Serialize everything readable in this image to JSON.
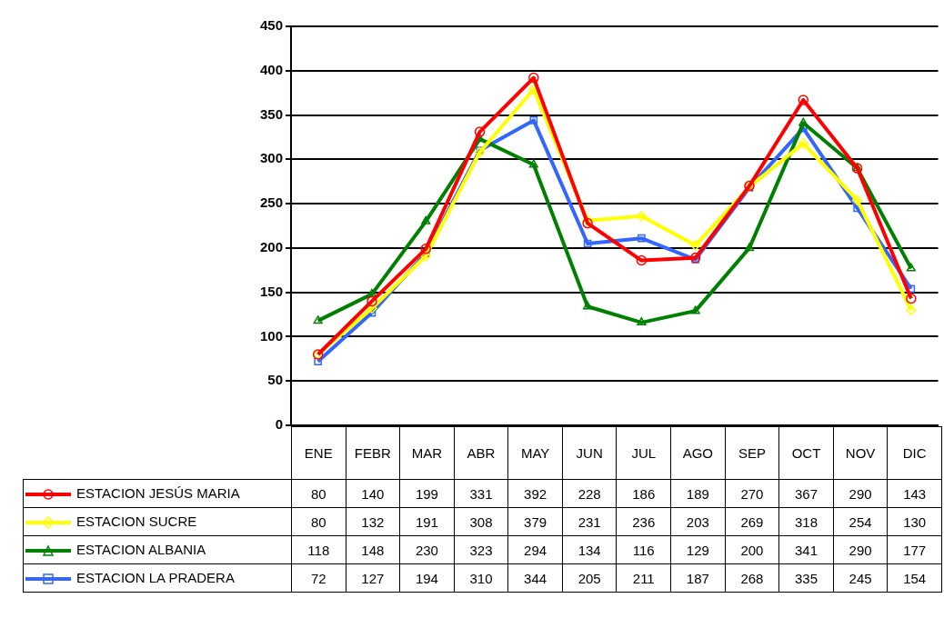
{
  "chart_data": {
    "type": "line",
    "categories": [
      "ENE",
      "FEBR",
      "MAR",
      "ABR",
      "MAY",
      "JUN",
      "JUL",
      "AGO",
      "SEP",
      "OCT",
      "NOV",
      "DIC"
    ],
    "series": [
      {
        "name": "ESTACION JESÚS MARIA",
        "color": "#ff0000",
        "marker": "circle",
        "values": [
          80,
          140,
          199,
          331,
          392,
          228,
          186,
          189,
          270,
          367,
          290,
          143
        ]
      },
      {
        "name": "ESTACION SUCRE",
        "color": "#ffff00",
        "marker": "diamond",
        "values": [
          80,
          132,
          191,
          308,
          379,
          231,
          236,
          203,
          269,
          318,
          254,
          130
        ]
      },
      {
        "name": "ESTACION  ALBANIA",
        "color": "#008000",
        "marker": "triangle",
        "values": [
          118,
          148,
          230,
          323,
          294,
          134,
          116,
          129,
          200,
          341,
          290,
          177
        ]
      },
      {
        "name": "ESTACION  LA PRADERA",
        "color": "#3366ff",
        "marker": "square",
        "values": [
          72,
          127,
          194,
          310,
          344,
          205,
          211,
          187,
          268,
          335,
          245,
          154
        ]
      }
    ],
    "ylim": [
      0,
      450
    ],
    "yticks": [
      0,
      50,
      100,
      150,
      200,
      250,
      300,
      350,
      400,
      450
    ],
    "grid": "y",
    "legend": "bottom",
    "data_labels": true,
    "line_style": "solid"
  }
}
